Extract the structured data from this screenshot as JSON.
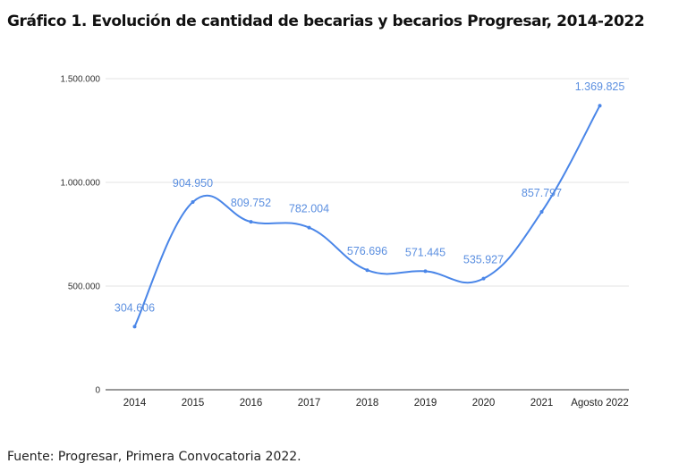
{
  "title": "Gráfico 1. Evolución de cantidad de becarias y becarios Progresar, 2014-2022",
  "source": "Fuente: Progresar, Primera Convocatoria 2022.",
  "chart_data": {
    "type": "line",
    "categories": [
      "2014",
      "2015",
      "2016",
      "2017",
      "2018",
      "2019",
      "2020",
      "2021",
      "Agosto 2022"
    ],
    "values": [
      304606,
      904950,
      809752,
      782004,
      576696,
      571445,
      535927,
      857797,
      1369825
    ],
    "data_labels": [
      "304.606",
      "904.950",
      "809.752",
      "782.004",
      "576.696",
      "571.445",
      "535.927",
      "857.797",
      "1.369.825"
    ],
    "ylim": [
      0,
      1500000
    ],
    "yticks": [
      0,
      500000,
      1000000,
      1500000
    ],
    "ytick_labels": [
      "0",
      "500.000",
      "1.000.000",
      "1.500.000"
    ],
    "grid": true,
    "line_color": "#4a86e8",
    "label_color": "#5b8fe0"
  }
}
